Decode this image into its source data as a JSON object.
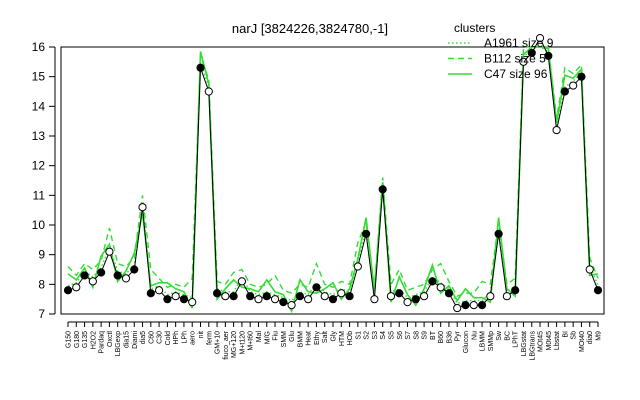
{
  "chart_data": {
    "type": "line",
    "title": "narJ [3824226,3824780,-1]",
    "xlabel": "",
    "ylabel": "",
    "ylim": [
      7,
      16
    ],
    "y_ticks": [
      7,
      8,
      9,
      10,
      11,
      12,
      13,
      14,
      15,
      16
    ],
    "grid": false,
    "legend": {
      "title": "clusters",
      "placement": "top-right",
      "entries": [
        {
          "label": "A1961 size 9",
          "style": "dotted"
        },
        {
          "label": "B112 size 5",
          "style": "dashed"
        },
        {
          "label": "C47 size 96",
          "style": "solid"
        }
      ]
    },
    "x_tick_labels": [
      "G150",
      "G180",
      "G135",
      "H2O2",
      "Pardaq",
      "Oxctl",
      "LBGexp",
      "dia15",
      "Diami",
      "dia5",
      "C60",
      "C30",
      "Cold",
      "HPh",
      "LPh",
      "aero",
      "nit",
      "ferm",
      "GM+10",
      "fiuco_aer",
      "MG+120",
      "M+t120",
      "M+t60",
      "Mal",
      "M/G",
      "Fiu",
      "SMM",
      "Glu",
      "BMM",
      "Heat",
      "Ethy",
      "Salt",
      "Gly",
      "HTM",
      "HOb",
      "S1",
      "S2",
      "S3",
      "S4",
      "S5",
      "S6",
      "S7",
      "S8",
      "S9",
      "BT",
      "B60",
      "B36",
      "Pyr",
      "Glucon",
      "Nu",
      "LBMM",
      "SMMp",
      "Sw",
      "BC",
      "LPhT",
      "LBGstat",
      "LBGtrans",
      "MOt45",
      "M0t45",
      "Lbstat",
      "BI",
      "Sb",
      "MOt40",
      "dia0",
      "M9"
    ],
    "series": [
      {
        "values": [
          7.8,
          7.9,
          8.3,
          8.1,
          8.4,
          9.1,
          8.3,
          8.2,
          8.5,
          10.6,
          7.7,
          7.8,
          7.5,
          7.6,
          7.5,
          7.4,
          15.3,
          14.5,
          7.7,
          7.6,
          7.6,
          8.1,
          7.6,
          7.5,
          7.6,
          7.5,
          7.4,
          7.3,
          7.6,
          7.5,
          7.9,
          7.6,
          7.5,
          7.7,
          7.6,
          8.6,
          9.7,
          7.5,
          11.2,
          7.6,
          7.7,
          7.4,
          7.5,
          7.6,
          8.1,
          7.9,
          7.7,
          7.2,
          7.3,
          7.3,
          7.3,
          7.6,
          9.7,
          7.6,
          7.8,
          15.5,
          15.8,
          16.3,
          15.7,
          13.2,
          14.5,
          14.7,
          15.0,
          8.5,
          7.8
        ]
      }
    ],
    "line_colors": {
      "accent": "#33dd33",
      "marker": "#000000"
    }
  }
}
